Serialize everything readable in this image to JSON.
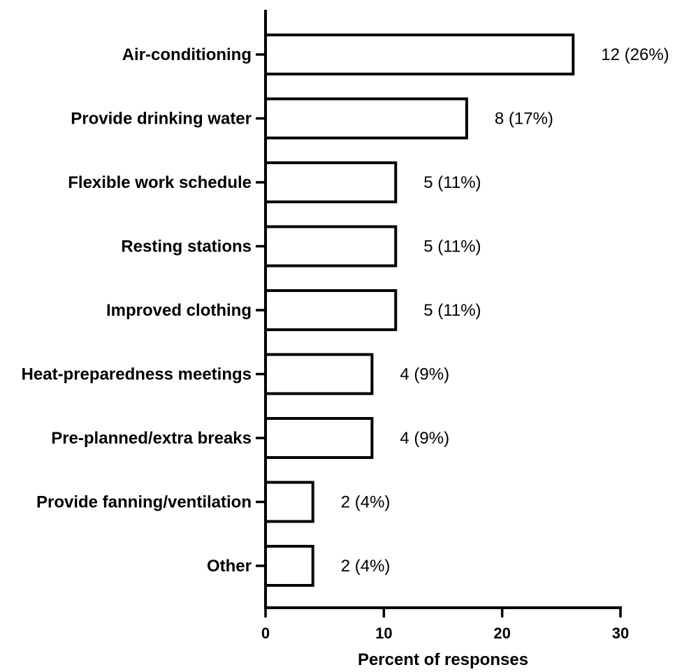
{
  "chart_data": {
    "type": "bar",
    "orientation": "horizontal",
    "title": "",
    "xlabel": "Percent of responses",
    "ylabel": "",
    "xlim": [
      0,
      30
    ],
    "xticks": [
      0,
      10,
      20,
      30
    ],
    "grid": false,
    "bar_fill": "#ffffff",
    "bar_stroke": "#000000",
    "categories": [
      "Air-conditioning",
      "Provide drinking water",
      "Flexible work schedule",
      "Resting stations",
      "Improved clothing",
      "Heat-preparedness meetings",
      "Pre-planned/extra breaks",
      "Provide fanning/ventilation",
      "Other"
    ],
    "values": [
      26,
      17,
      11,
      11,
      11,
      9,
      9,
      4,
      4
    ],
    "data_labels": [
      "12 (26%)",
      "8 (17%)",
      "5 (11%)",
      "5 (11%)",
      "5 (11%)",
      "4 (9%)",
      "4 (9%)",
      "2 (4%)",
      "2 (4%)"
    ]
  }
}
